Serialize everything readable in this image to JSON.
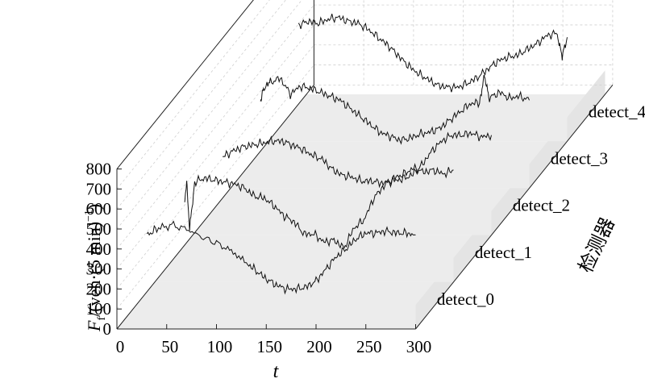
{
  "chart_data": {
    "type": "line",
    "style": "3d-waterfall",
    "xlabel": "t",
    "ylabel_main": "F",
    "ylabel_sub": "f",
    "ylabel_rest": "/(veh·(5 min)",
    "ylabel_sup": "−1",
    "ylabel_close": ")",
    "zlabel": "检测器",
    "x_ticks": [
      "0",
      "50",
      "100",
      "150",
      "200",
      "250",
      "300"
    ],
    "y_ticks": [
      "0",
      "100",
      "200",
      "300",
      "400",
      "500",
      "600",
      "700",
      "800"
    ],
    "xlim": [
      0,
      300
    ],
    "ylim": [
      0,
      800
    ],
    "grid": true,
    "series": [
      {
        "name": "detect_0",
        "x": [
          30,
          40,
          55,
          70,
          85,
          100,
          115,
          130,
          140,
          150,
          160,
          170,
          180,
          190,
          200,
          210,
          220,
          230,
          240,
          250,
          260,
          270,
          280,
          290,
          300
        ],
        "y": [
          470,
          500,
          520,
          500,
          460,
          430,
          390,
          330,
          290,
          250,
          220,
          200,
          200,
          210,
          240,
          300,
          360,
          400,
          450,
          480,
          480,
          490,
          480,
          480,
          470
        ]
      },
      {
        "name": "detect_1",
        "x": [
          30,
          32,
          35,
          40,
          50,
          60,
          70,
          80,
          90,
          100,
          110,
          120,
          130,
          140,
          150,
          160,
          170,
          180,
          190,
          200,
          210,
          220,
          230,
          240,
          250,
          260,
          270,
          280,
          290,
          300
        ],
        "y": [
          420,
          500,
          260,
          500,
          520,
          510,
          500,
          490,
          470,
          430,
          420,
          380,
          330,
          300,
          240,
          240,
          200,
          210,
          170,
          270,
          310,
          420,
          480,
          520,
          540,
          570,
          550,
          560,
          540,
          560
        ]
      },
      {
        "name": "detect_2",
        "x": [
          30,
          40,
          50,
          60,
          70,
          80,
          90,
          100,
          110,
          120,
          130,
          140,
          150,
          160,
          170,
          180,
          190,
          200,
          210,
          220,
          230,
          240,
          250,
          260,
          270,
          280,
          290,
          300
        ],
        "y": [
          390,
          420,
          440,
          450,
          460,
          470,
          470,
          450,
          430,
          400,
          380,
          330,
          300,
          290,
          270,
          270,
          260,
          270,
          280,
          300,
          350,
          420,
          470,
          500,
          500,
          510,
          490,
          500
        ]
      },
      {
        "name": "detect_3",
        "x": [
          30,
          33,
          40,
          50,
          60,
          70,
          80,
          90,
          100,
          110,
          120,
          130,
          140,
          150,
          160,
          170,
          180,
          190,
          200,
          210,
          220,
          230,
          240,
          250,
          255,
          260,
          270,
          280,
          290,
          300
        ],
        "y": [
          430,
          500,
          530,
          550,
          470,
          510,
          500,
          480,
          460,
          440,
          400,
          360,
          320,
          280,
          260,
          240,
          250,
          270,
          280,
          300,
          340,
          380,
          420,
          430,
          560,
          450,
          480,
          450,
          460,
          440
        ]
      },
      {
        "name": "detect_4",
        "x": [
          30,
          40,
          50,
          60,
          70,
          80,
          90,
          100,
          110,
          120,
          130,
          140,
          150,
          160,
          170,
          180,
          190,
          200,
          210,
          220,
          230,
          240,
          250,
          260,
          270,
          280,
          290,
          295,
          300
        ],
        "y": [
          580,
          600,
          590,
          610,
          620,
          600,
          590,
          560,
          520,
          480,
          430,
          380,
          340,
          310,
          280,
          270,
          270,
          290,
          320,
          360,
          400,
          420,
          430,
          460,
          490,
          530,
          540,
          420,
          520
        ]
      }
    ]
  }
}
